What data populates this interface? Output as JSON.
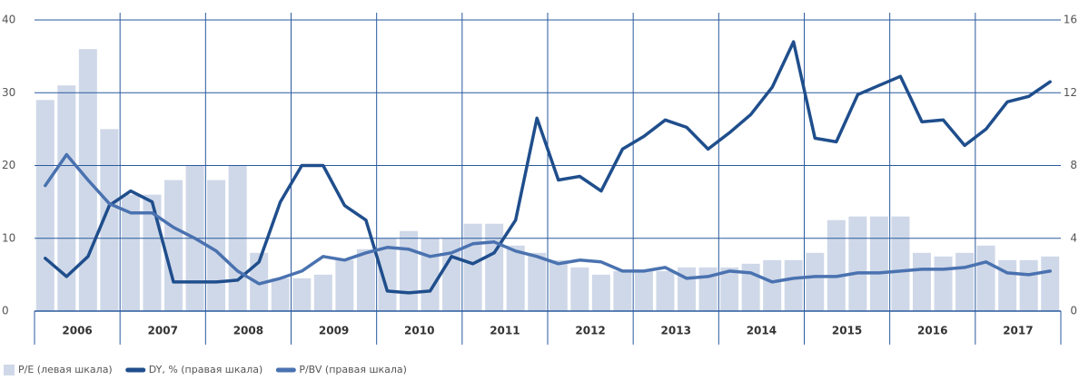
{
  "chart_data": {
    "type": "bar-line",
    "categories": [
      "2006",
      "2007",
      "2008",
      "2009",
      "2010",
      "2011",
      "2012",
      "2013",
      "2014",
      "2015",
      "2016",
      "2017"
    ],
    "x": [
      2006.125,
      2006.375,
      2006.625,
      2006.875,
      2007.125,
      2007.375,
      2007.625,
      2007.875,
      2008.125,
      2008.375,
      2008.625,
      2008.875,
      2009.125,
      2009.375,
      2009.625,
      2009.875,
      2010.125,
      2010.375,
      2010.625,
      2010.875,
      2011.125,
      2011.375,
      2011.625,
      2011.875,
      2012.125,
      2012.375,
      2012.625,
      2012.875,
      2013.125,
      2013.375,
      2013.625,
      2013.875,
      2014.125,
      2014.375,
      2014.625,
      2014.875,
      2015.125,
      2015.375,
      2015.625,
      2015.875,
      2016.125,
      2016.375,
      2016.625,
      2016.875,
      2017.125,
      2017.375,
      2017.625,
      2017.875
    ],
    "xlim": [
      2006,
      2018
    ],
    "xticks": [
      2007,
      2008,
      2009,
      2010,
      2011,
      2012,
      2013,
      2014,
      2015,
      2016,
      2017
    ],
    "ylim": [
      0,
      40
    ],
    "yticks": [
      0,
      10,
      20,
      30,
      40
    ],
    "y2lim": [
      0,
      16
    ],
    "y2ticks": [
      0,
      4,
      8,
      12,
      16
    ],
    "grid": true,
    "series": [
      {
        "name": "P/E (левая шкала)",
        "kind": "bar",
        "color": "#cfd8e8",
        "values": [
          29,
          31,
          36,
          25,
          16,
          16,
          18,
          20,
          18,
          20,
          8,
          4.5,
          4.5,
          5,
          7,
          8.5,
          10,
          11,
          10,
          10,
          12,
          12,
          9,
          8,
          7,
          6,
          5,
          5.5,
          5.5,
          5.5,
          6,
          6,
          6,
          6.5,
          7,
          7,
          8,
          12.5,
          13,
          13,
          13,
          8,
          7.5,
          8,
          9,
          7,
          7,
          7.5
        ]
      },
      {
        "name": "DY, % (правая шкала)",
        "kind": "line",
        "axis": "y2",
        "color": "#1f4e8c",
        "values": [
          2.9,
          1.9,
          3.0,
          5.8,
          6.6,
          6.0,
          1.6,
          1.6,
          1.6,
          1.7,
          2.7,
          6.0,
          8.0,
          8.0,
          5.8,
          5.0,
          1.1,
          1.0,
          1.1,
          3.0,
          2.6,
          3.2,
          5.0,
          10.6,
          7.2,
          7.4,
          6.6,
          8.9,
          9.6,
          10.5,
          10.1,
          8.9,
          9.8,
          10.8,
          12.3,
          14.8,
          9.5,
          9.3,
          11.9,
          12.4,
          12.9,
          10.4,
          10.5,
          9.1,
          10.0,
          11.5,
          11.8,
          12.6
        ]
      },
      {
        "name": "P/BV (правая шкала)",
        "kind": "line",
        "axis": "y2",
        "color": "#4a72b0",
        "values": [
          6.9,
          8.6,
          7.2,
          5.9,
          5.4,
          5.4,
          4.6,
          4.0,
          3.3,
          2.2,
          1.5,
          1.8,
          2.2,
          3.0,
          2.8,
          3.2,
          3.5,
          3.4,
          3.0,
          3.2,
          3.7,
          3.8,
          3.3,
          3.0,
          2.6,
          2.8,
          2.7,
          2.2,
          2.2,
          2.4,
          1.8,
          1.9,
          2.2,
          2.1,
          1.6,
          1.8,
          1.9,
          1.9,
          2.1,
          2.1,
          2.2,
          2.3,
          2.3,
          2.4,
          2.7,
          2.1,
          2.0,
          2.2
        ]
      }
    ]
  }
}
